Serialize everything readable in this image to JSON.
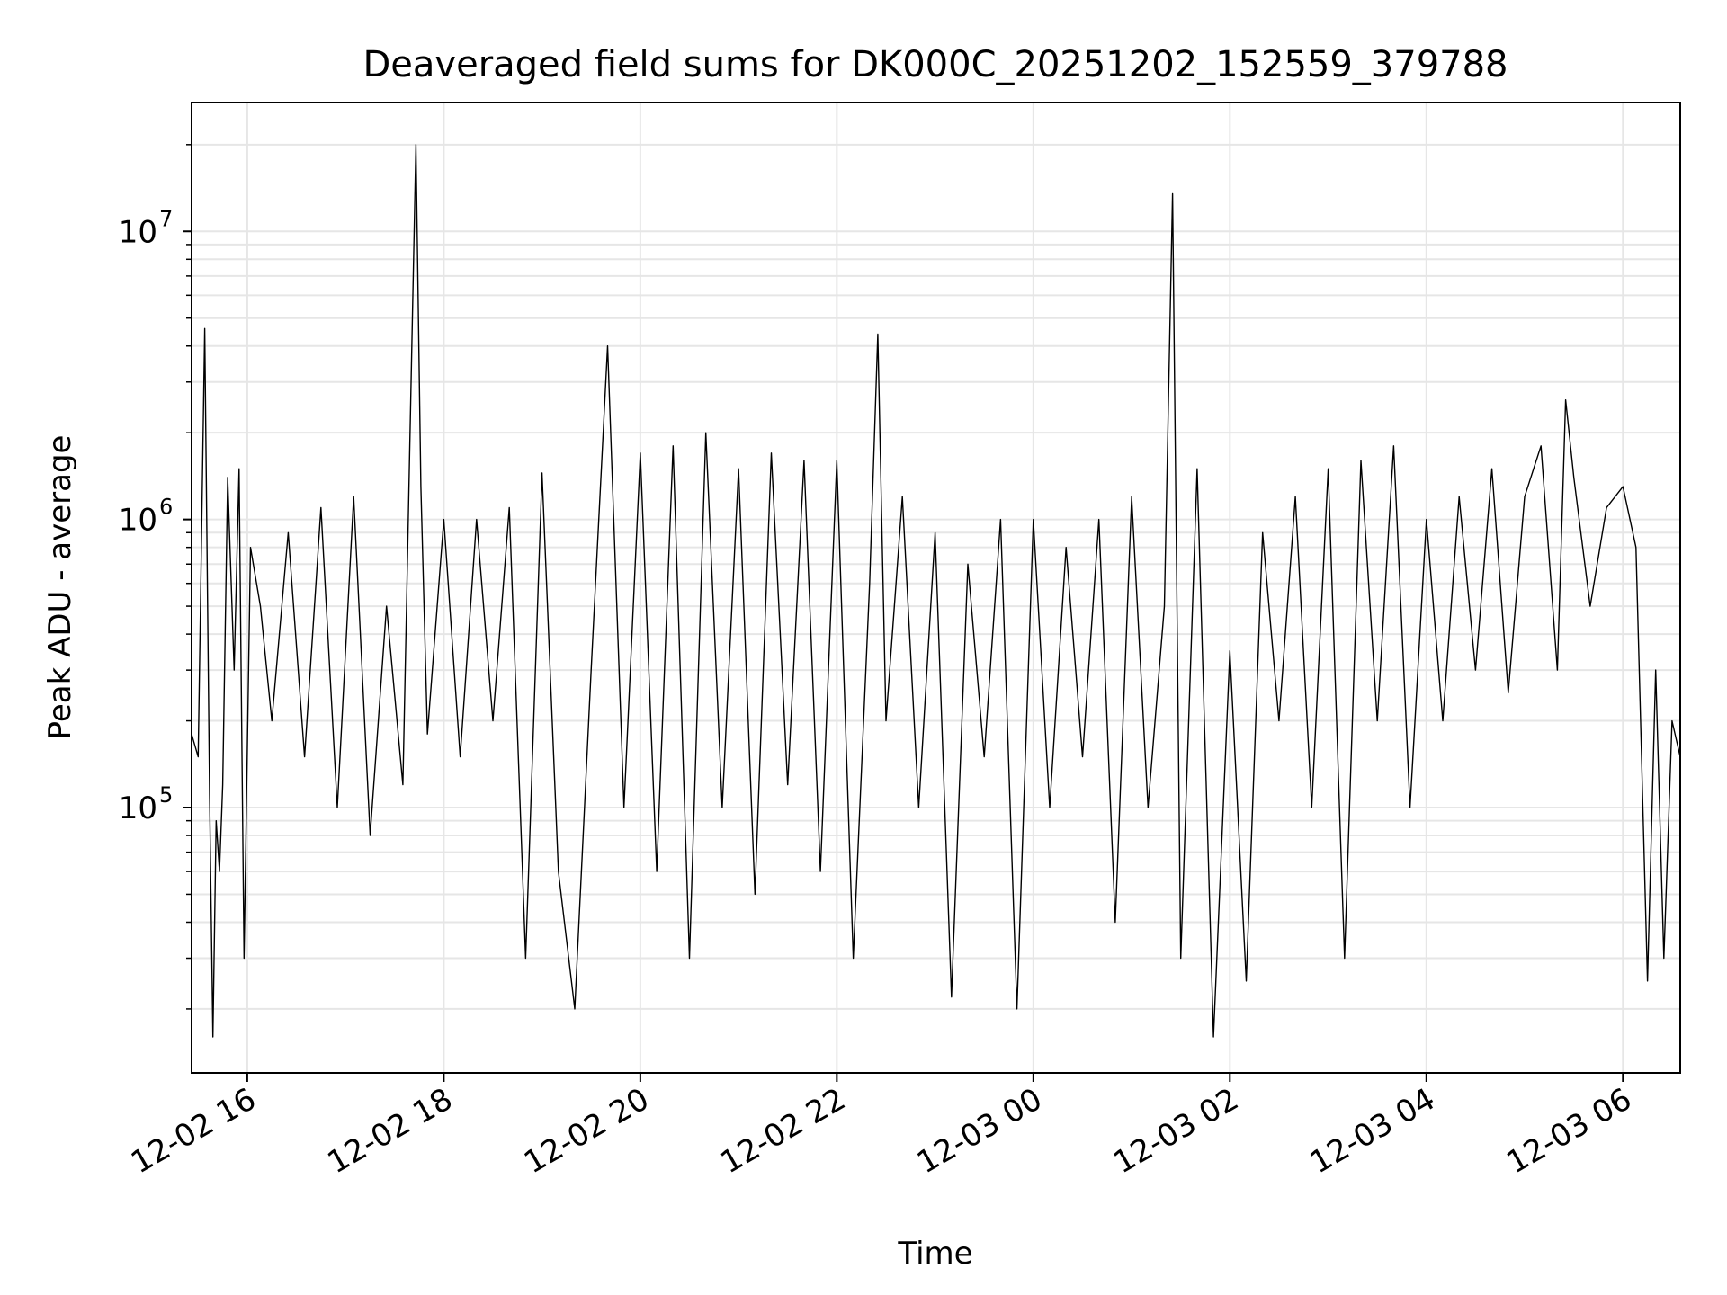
{
  "chart_data": {
    "type": "line",
    "title": "Deaveraged field sums for DK000C_20251202_152559_379788",
    "xlabel": "Time",
    "ylabel": "Peak ADU - average",
    "yscale": "log",
    "grid": true,
    "grid_minor": true,
    "line_color": "#000000",
    "grid_color": "#e6e6e6",
    "xlim": [
      "2025-12-02 15:26",
      "2025-12-03 06:35"
    ],
    "ylim": [
      12000,
      28000000
    ],
    "x_ticks": [
      {
        "value": "2025-12-02 16:00",
        "label": "12-02 16"
      },
      {
        "value": "2025-12-02 18:00",
        "label": "12-02 18"
      },
      {
        "value": "2025-12-02 20:00",
        "label": "12-02 20"
      },
      {
        "value": "2025-12-02 22:00",
        "label": "12-02 22"
      },
      {
        "value": "2025-12-03 00:00",
        "label": "12-03 00"
      },
      {
        "value": "2025-12-03 02:00",
        "label": "12-03 02"
      },
      {
        "value": "2025-12-03 04:00",
        "label": "12-03 04"
      },
      {
        "value": "2025-12-03 06:00",
        "label": "12-03 06"
      }
    ],
    "y_ticks": [
      {
        "value": 100000,
        "base": "10",
        "exp": "5"
      },
      {
        "value": 1000000,
        "base": "10",
        "exp": "6"
      },
      {
        "value": 10000000,
        "base": "10",
        "exp": "7"
      }
    ],
    "series": [
      {
        "x": [
          "2025-12-02 15:26",
          "2025-12-02 15:30",
          "2025-12-02 15:34",
          "2025-12-02 15:37",
          "2025-12-02 15:39",
          "2025-12-02 15:41",
          "2025-12-02 15:43",
          "2025-12-02 15:45",
          "2025-12-02 15:48",
          "2025-12-02 15:52",
          "2025-12-02 15:55",
          "2025-12-02 15:58",
          "2025-12-02 16:02",
          "2025-12-02 16:08",
          "2025-12-02 16:15",
          "2025-12-02 16:25",
          "2025-12-02 16:35",
          "2025-12-02 16:45",
          "2025-12-02 16:55",
          "2025-12-02 17:05",
          "2025-12-02 17:15",
          "2025-12-02 17:25",
          "2025-12-02 17:35",
          "2025-12-02 17:43",
          "2025-12-02 17:46",
          "2025-12-02 17:50",
          "2025-12-02 18:00",
          "2025-12-02 18:10",
          "2025-12-02 18:20",
          "2025-12-02 18:30",
          "2025-12-02 18:40",
          "2025-12-02 18:50",
          "2025-12-02 19:00",
          "2025-12-02 19:10",
          "2025-12-02 19:20",
          "2025-12-02 19:30",
          "2025-12-02 19:40",
          "2025-12-02 19:50",
          "2025-12-02 20:00",
          "2025-12-02 20:10",
          "2025-12-02 20:20",
          "2025-12-02 20:30",
          "2025-12-02 20:40",
          "2025-12-02 20:50",
          "2025-12-02 21:00",
          "2025-12-02 21:10",
          "2025-12-02 21:20",
          "2025-12-02 21:30",
          "2025-12-02 21:40",
          "2025-12-02 21:50",
          "2025-12-02 22:00",
          "2025-12-02 22:10",
          "2025-12-02 22:20",
          "2025-12-02 22:25",
          "2025-12-02 22:30",
          "2025-12-02 22:40",
          "2025-12-02 22:50",
          "2025-12-02 23:00",
          "2025-12-02 23:10",
          "2025-12-02 23:20",
          "2025-12-02 23:30",
          "2025-12-02 23:40",
          "2025-12-02 23:50",
          "2025-12-03 00:00",
          "2025-12-03 00:10",
          "2025-12-03 00:20",
          "2025-12-03 00:30",
          "2025-12-03 00:40",
          "2025-12-03 00:50",
          "2025-12-03 01:00",
          "2025-12-03 01:10",
          "2025-12-03 01:20",
          "2025-12-03 01:25",
          "2025-12-03 01:30",
          "2025-12-03 01:40",
          "2025-12-03 01:50",
          "2025-12-03 02:00",
          "2025-12-03 02:10",
          "2025-12-03 02:20",
          "2025-12-03 02:30",
          "2025-12-03 02:40",
          "2025-12-03 02:50",
          "2025-12-03 03:00",
          "2025-12-03 03:10",
          "2025-12-03 03:20",
          "2025-12-03 03:30",
          "2025-12-03 03:40",
          "2025-12-03 03:50",
          "2025-12-03 04:00",
          "2025-12-03 04:10",
          "2025-12-03 04:20",
          "2025-12-03 04:30",
          "2025-12-03 04:40",
          "2025-12-03 04:50",
          "2025-12-03 05:00",
          "2025-12-03 05:10",
          "2025-12-03 05:20",
          "2025-12-03 05:25",
          "2025-12-03 05:30",
          "2025-12-03 05:40",
          "2025-12-03 05:50",
          "2025-12-03 06:00",
          "2025-12-03 06:08",
          "2025-12-03 06:15",
          "2025-12-03 06:20",
          "2025-12-03 06:25",
          "2025-12-03 06:30",
          "2025-12-03 06:35"
        ],
        "y": [
          180000,
          150000,
          4600000,
          110000,
          16000,
          90000,
          60000,
          120000,
          1400000,
          300000,
          1500000,
          30000,
          800000,
          500000,
          200000,
          900000,
          150000,
          1100000,
          100000,
          1200000,
          80000,
          500000,
          120000,
          20000000,
          1300000,
          180000,
          1000000,
          150000,
          1000000,
          200000,
          1100000,
          30000,
          1450000,
          60000,
          20000,
          300000,
          4000000,
          100000,
          1700000,
          60000,
          1800000,
          30000,
          2000000,
          100000,
          1500000,
          50000,
          1700000,
          120000,
          1600000,
          60000,
          1600000,
          30000,
          600000,
          4400000,
          200000,
          1200000,
          100000,
          900000,
          22000,
          700000,
          150000,
          1000000,
          20000,
          1000000,
          100000,
          800000,
          150000,
          1000000,
          40000,
          1200000,
          100000,
          500000,
          13500000,
          30000,
          1500000,
          16000,
          350000,
          25000,
          900000,
          200000,
          1200000,
          100000,
          1500000,
          30000,
          1600000,
          200000,
          1800000,
          100000,
          1000000,
          200000,
          1200000,
          300000,
          1500000,
          250000,
          1200000,
          1800000,
          300000,
          2600000,
          1400000,
          500000,
          1100000,
          1300000,
          800000,
          25000,
          300000,
          30000,
          200000,
          150000
        ]
      }
    ]
  }
}
